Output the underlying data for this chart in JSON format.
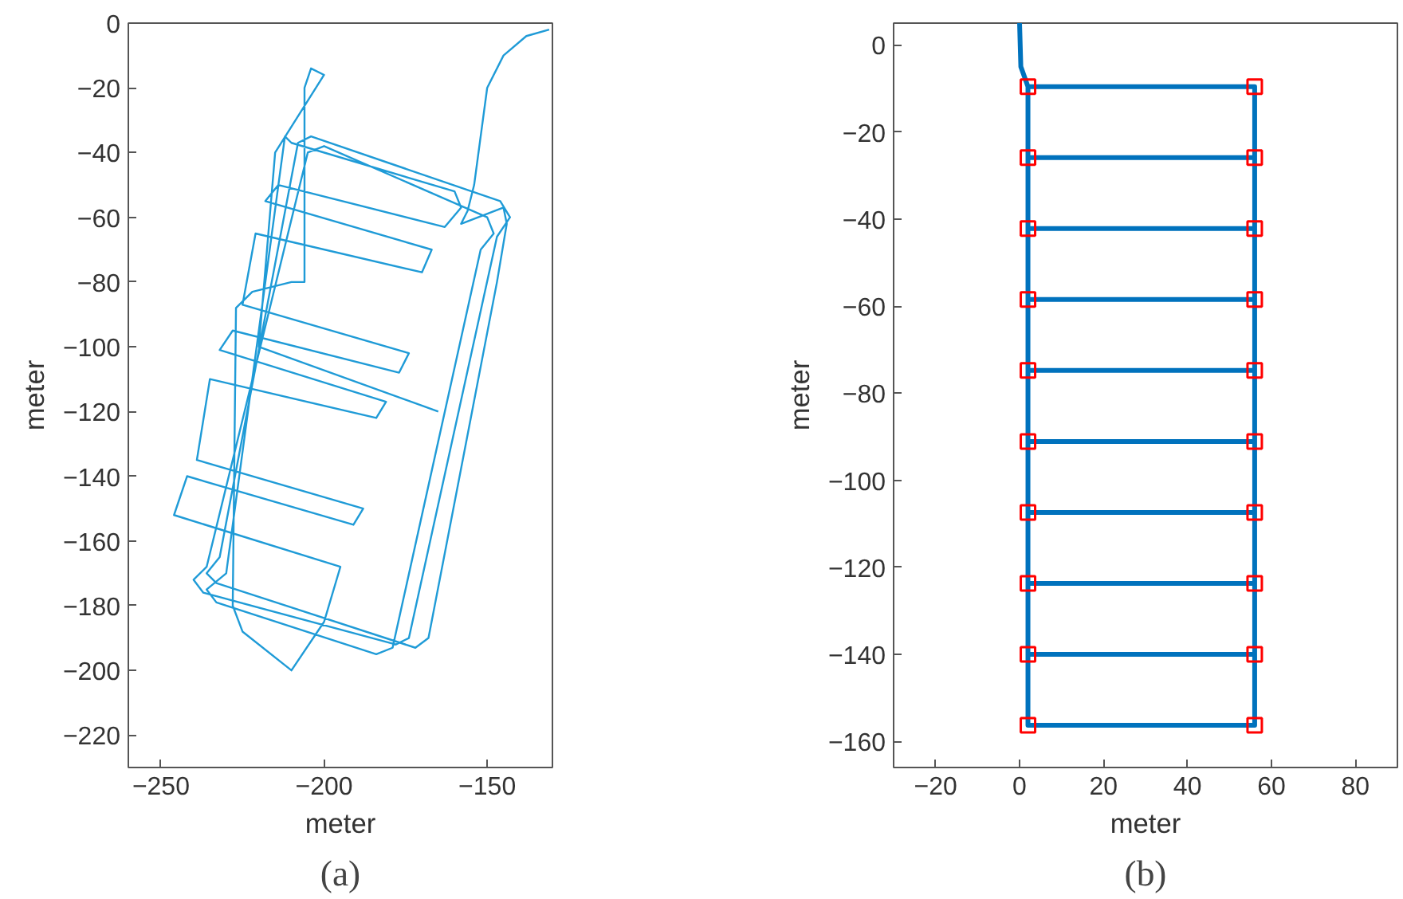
{
  "chart_data": [
    {
      "type": "line",
      "xlabel": "meter",
      "ylabel": "meter",
      "annotations": [
        "(a)"
      ],
      "xlim": [
        -260,
        -130
      ],
      "ylim": [
        -230,
        0
      ],
      "xticks": [
        -250,
        -200,
        -150
      ],
      "yticks": [
        -220,
        -200,
        -180,
        -160,
        -140,
        -120,
        -100,
        -80,
        -60,
        -40,
        -20,
        0
      ],
      "series": [
        {
          "color": "#1f9bd7",
          "x": [
            -131,
            -138,
            -145,
            -150,
            -152,
            -154,
            -156,
            -158,
            -145,
            -144,
            -147,
            -168,
            -172,
            -233,
            -236,
            -232,
            -208,
            -204,
            -146,
            -143,
            -147,
            -174,
            -178,
            -237,
            -240,
            -236,
            -205,
            -200,
            -150,
            -148,
            -152,
            -179,
            -184,
            -233,
            -236,
            -230,
            -212,
            -210,
            -160,
            -158,
            -163,
            -214,
            -218,
            -167,
            -170,
            -221,
            -225,
            -174,
            -177,
            -228,
            -232,
            -181,
            -184,
            -235,
            -239,
            -188,
            -191,
            -242,
            -246,
            -195,
            -200,
            -210,
            -225,
            -228,
            -227,
            -222,
            -210,
            -206,
            -206,
            -204,
            -200,
            -215,
            -220,
            -165
          ],
          "values": [
            -2,
            -4,
            -10,
            -20,
            -35,
            -50,
            -58,
            -62,
            -57,
            -62,
            -80,
            -190,
            -193,
            -173,
            -170,
            -165,
            -37,
            -35,
            -55,
            -60,
            -66,
            -190,
            -192,
            -176,
            -172,
            -168,
            -40,
            -38,
            -60,
            -65,
            -70,
            -193,
            -195,
            -179,
            -175,
            -170,
            -35,
            -37,
            -52,
            -57,
            -63,
            -50,
            -55,
            -70,
            -77,
            -65,
            -87,
            -102,
            -108,
            -95,
            -101,
            -117,
            -122,
            -110,
            -135,
            -150,
            -155,
            -140,
            -152,
            -168,
            -185,
            -200,
            -188,
            -180,
            -88,
            -83,
            -80,
            -80,
            -20,
            -14,
            -16,
            -40,
            -100,
            -120
          ]
        }
      ]
    },
    {
      "type": "line",
      "xlabel": "meter",
      "ylabel": "meter",
      "annotations": [
        "(b)"
      ],
      "xlim": [
        -30,
        90
      ],
      "ylim": [
        -166,
        5
      ],
      "xticks": [
        -20,
        0,
        20,
        40,
        60,
        80
      ],
      "yticks": [
        -160,
        -140,
        -120,
        -100,
        -80,
        -60,
        -40,
        -20,
        0
      ],
      "series": [
        {
          "color": "#0072bd",
          "x": [
            0,
            0.3,
            2,
            56,
            56,
            2,
            2,
            56,
            56,
            2,
            2,
            56,
            56,
            2,
            2,
            56,
            56,
            2,
            2,
            56,
            56,
            2,
            2,
            56,
            56,
            2
          ],
          "values": [
            5,
            -5,
            -9.6,
            -9.6,
            -25.9,
            -25.9,
            -42.2,
            -42.2,
            -58.5,
            -58.5,
            -74.8,
            -74.8,
            -91.1,
            -91.1,
            -107.4,
            -107.4,
            -123.7,
            -123.7,
            -140,
            -140,
            -156.3,
            -156.3,
            -9.6,
            -9.6,
            -156.3,
            -156.3
          ]
        },
        {
          "type": "scatter",
          "marker": "square",
          "color": "#ff0000",
          "x": [
            2,
            56,
            2,
            56,
            2,
            56,
            2,
            56,
            2,
            56,
            2,
            56,
            2,
            56,
            2,
            56,
            2,
            56,
            2,
            56
          ],
          "values": [
            -9.6,
            -9.6,
            -25.9,
            -25.9,
            -42.2,
            -42.2,
            -58.5,
            -58.5,
            -74.8,
            -74.8,
            -91.1,
            -91.1,
            -107.4,
            -107.4,
            -123.7,
            -123.7,
            -140,
            -140,
            -156.3,
            -156.3
          ]
        }
      ]
    }
  ]
}
